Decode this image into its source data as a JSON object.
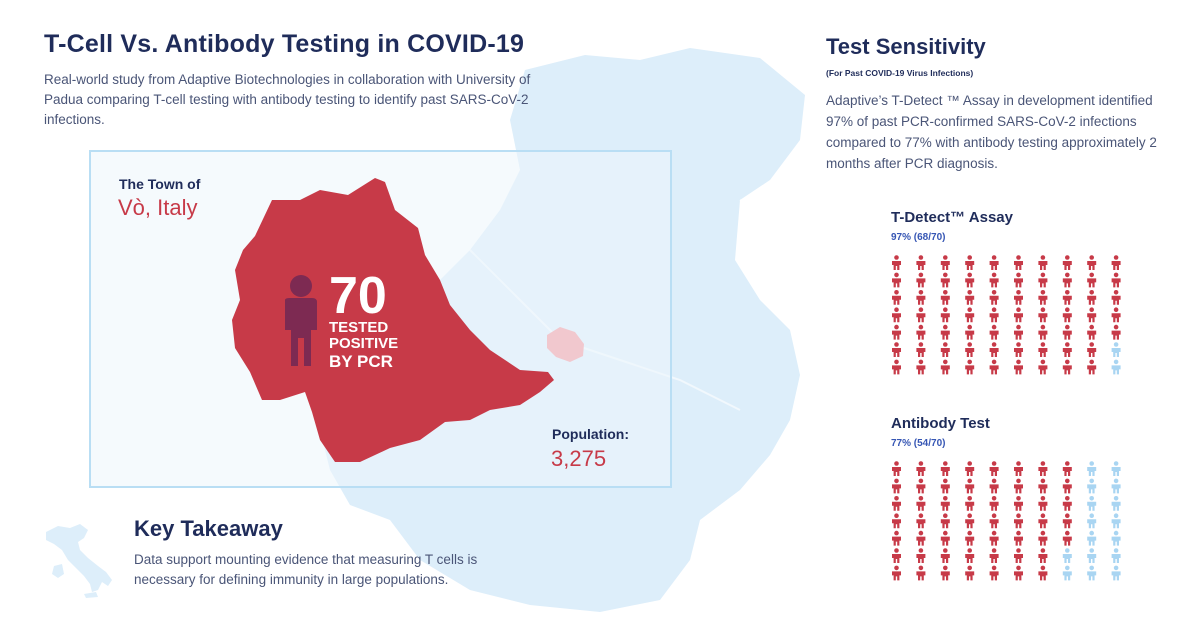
{
  "header": {
    "title": "T-Cell Vs. Antibody Testing in COVID-19",
    "intro": "Real-world study from Adaptive Biotechnologies in collaboration with University of Padua comparing T-cell testing with antibody testing to identify past SARS-CoV-2 infections."
  },
  "town": {
    "prefix": "The Town of",
    "name": "Vò, Italy",
    "tested_number": "70",
    "tested_line1": "TESTED",
    "tested_line2": "POSITIVE",
    "tested_line3": "BY PCR",
    "population_label": "Population:",
    "population_value": "3,275"
  },
  "key_takeaway": {
    "title": "Key Takeaway",
    "text": "Data support mounting evidence that measuring T cells is necessary for defining immunity in large populations."
  },
  "sensitivity": {
    "title": "Test Sensitivity",
    "subtitle": "(For Past COVID-19 Virus Infections)",
    "text": "Adaptive’s T-Detect ™ Assay in development identified 97% of past PCR-confirmed SARS-CoV-2 infections compared to 77% with antibody testing approximately 2 months after PCR diagnosis."
  },
  "tests": [
    {
      "name": "T-Detect™ Assay",
      "stat": "97% (68/70)",
      "positive": 68,
      "total": 70
    },
    {
      "name": "Antibody Test",
      "stat": "77% (54/70)",
      "positive": 54,
      "total": 70
    }
  ],
  "colors": {
    "positive": "#c73a48",
    "negative": "#a9d5f2",
    "map_fill": "#ddeefa",
    "title": "#1f2c5a",
    "accent_blue": "#3656b4"
  },
  "icons": [
    "person-icon",
    "town-map",
    "italy-map"
  ]
}
